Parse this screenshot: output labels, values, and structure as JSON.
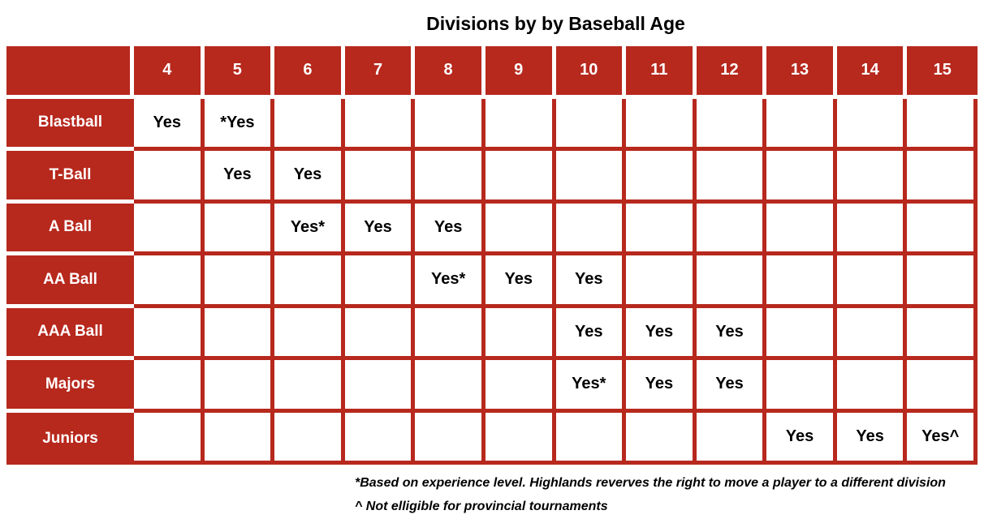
{
  "title": "Divisions by by Baseball Age",
  "colors": {
    "table_red": "#B7281D",
    "header_text": "#FFFFFF",
    "cell_text": "#000000"
  },
  "chart_data": {
    "type": "table",
    "title": "Divisions by by Baseball Age",
    "age_columns": [
      "4",
      "5",
      "6",
      "7",
      "8",
      "9",
      "10",
      "11",
      "12",
      "13",
      "14",
      "15"
    ],
    "rows": [
      {
        "label": "Blastball",
        "cells": [
          "Yes",
          "*Yes",
          "",
          "",
          "",
          "",
          "",
          "",
          "",
          "",
          "",
          ""
        ]
      },
      {
        "label": "T-Ball",
        "cells": [
          "",
          "Yes",
          "Yes",
          "",
          "",
          "",
          "",
          "",
          "",
          "",
          "",
          ""
        ]
      },
      {
        "label": "A Ball",
        "cells": [
          "",
          "",
          "Yes*",
          "Yes",
          "Yes",
          "",
          "",
          "",
          "",
          "",
          "",
          ""
        ]
      },
      {
        "label": "AA Ball",
        "cells": [
          "",
          "",
          "",
          "",
          "Yes*",
          "Yes",
          "Yes",
          "",
          "",
          "",
          "",
          ""
        ]
      },
      {
        "label": "AAA Ball",
        "cells": [
          "",
          "",
          "",
          "",
          "",
          "",
          "Yes",
          "Yes",
          "Yes",
          "",
          "",
          ""
        ]
      },
      {
        "label": "Majors",
        "cells": [
          "",
          "",
          "",
          "",
          "",
          "",
          "Yes*",
          "Yes",
          "Yes",
          "",
          "",
          ""
        ]
      },
      {
        "label": "Juniors",
        "cells": [
          "",
          "",
          "",
          "",
          "",
          "",
          "",
          "",
          "",
          "Yes",
          "Yes",
          "Yes^"
        ]
      }
    ],
    "footnotes": [
      "*Based on experience level. Highlands reverves the right to move a player to a different division",
      "^ Not elligible for provincial tournaments"
    ],
    "layout_hints": {
      "header_row_background": "red",
      "label_column_background": "red",
      "data_grid_lines": "red",
      "header_separators": "white"
    }
  }
}
